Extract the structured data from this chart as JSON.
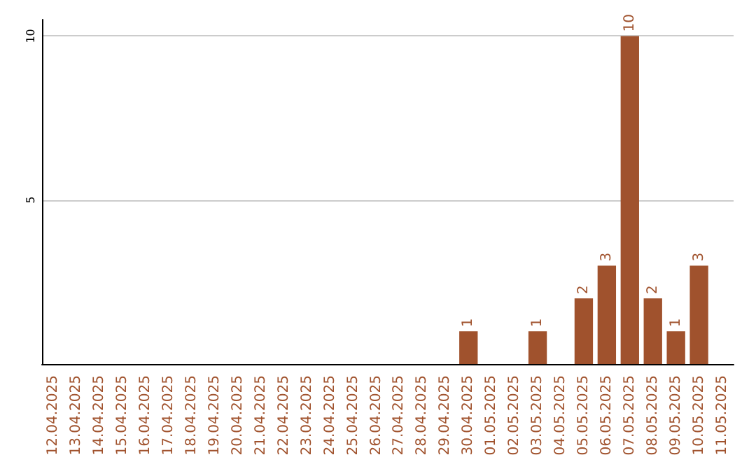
{
  "chart_data": {
    "type": "bar",
    "categories": [
      "12.04.2025",
      "13.04.2025",
      "14.04.2025",
      "15.04.2025",
      "16.04.2025",
      "17.04.2025",
      "18.04.2025",
      "19.04.2025",
      "20.04.2025",
      "21.04.2025",
      "22.04.2025",
      "23.04.2025",
      "24.04.2025",
      "25.04.2025",
      "26.04.2025",
      "27.04.2025",
      "28.04.2025",
      "29.04.2025",
      "30.04.2025",
      "01.05.2025",
      "02.05.2025",
      "03.05.2025",
      "04.05.2025",
      "05.05.2025",
      "06.05.2025",
      "07.05.2025",
      "08.05.2025",
      "09.05.2025",
      "10.05.2025",
      "11.05.2025"
    ],
    "values": [
      0,
      0,
      0,
      0,
      0,
      0,
      0,
      0,
      0,
      0,
      0,
      0,
      0,
      0,
      0,
      0,
      0,
      0,
      1,
      0,
      0,
      1,
      0,
      2,
      3,
      10,
      2,
      1,
      3,
      0
    ],
    "value_labels": [
      null,
      null,
      null,
      null,
      null,
      null,
      null,
      null,
      null,
      null,
      null,
      null,
      null,
      null,
      null,
      null,
      null,
      null,
      "1",
      null,
      null,
      "1",
      null,
      "2",
      "3",
      "10",
      "2",
      "1",
      "3",
      null
    ],
    "color": "#a0522d",
    "ylim": [
      0,
      10.5
    ],
    "yticks": [
      5,
      10
    ],
    "grid": "y"
  }
}
